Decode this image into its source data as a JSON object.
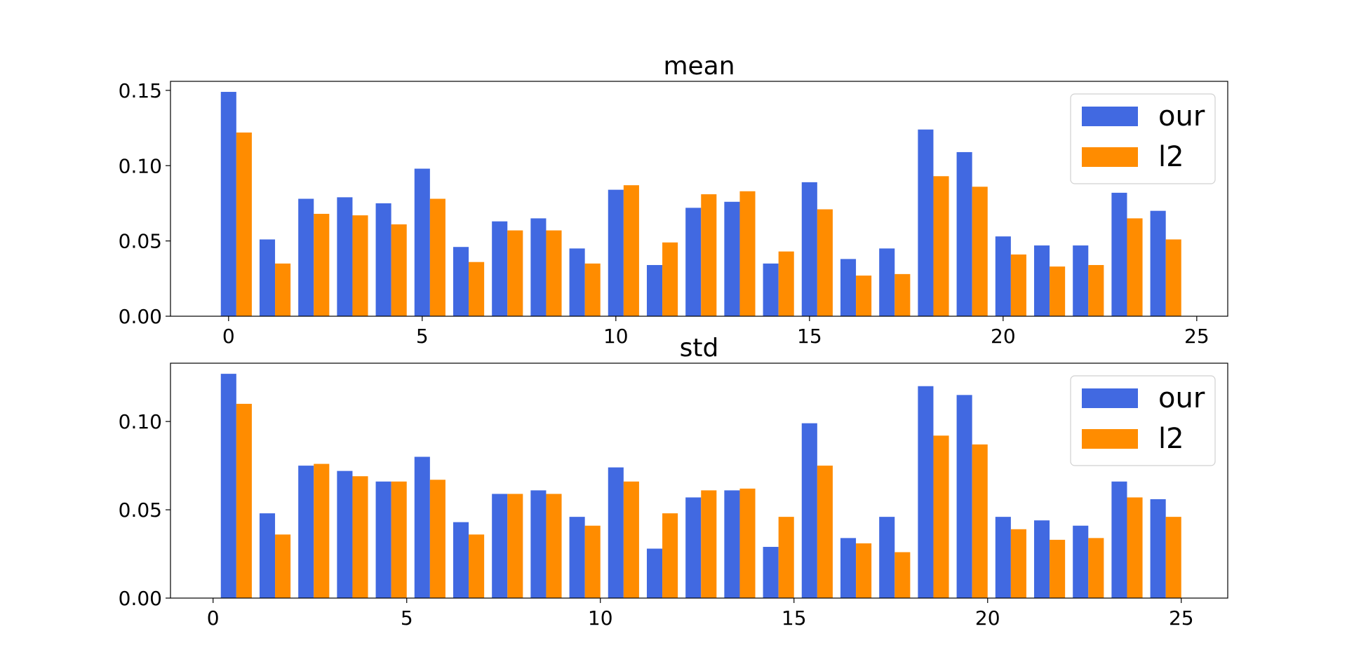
{
  "chart_data": [
    {
      "type": "bar",
      "title": "mean",
      "xlabel": "",
      "ylabel": "",
      "xlim": [
        -1.5,
        25.8
      ],
      "ylim": [
        0,
        0.156
      ],
      "x_ticks": [
        "0",
        "5",
        "10",
        "15",
        "20",
        "25"
      ],
      "x_tick_values": [
        0,
        5,
        10,
        15,
        20,
        25
      ],
      "y_ticks": [
        "0.00",
        "0.05",
        "0.10",
        "0.15"
      ],
      "y_tick_values": [
        0,
        0.05,
        0.1,
        0.15
      ],
      "grid": false,
      "legend": "top-right",
      "series": [
        {
          "name": "our",
          "color": "#4169e1",
          "x": [
            0,
            1,
            2,
            3,
            4,
            5,
            6,
            7,
            8,
            9,
            10,
            11,
            12,
            13,
            14,
            15,
            16,
            17,
            18,
            19,
            20,
            21,
            22,
            23,
            24
          ],
          "values": [
            0.149,
            0.051,
            0.078,
            0.079,
            0.075,
            0.098,
            0.046,
            0.063,
            0.065,
            0.045,
            0.084,
            0.034,
            0.072,
            0.076,
            0.035,
            0.089,
            0.038,
            0.045,
            0.124,
            0.109,
            0.053,
            0.047,
            0.047,
            0.082,
            0.07
          ]
        },
        {
          "name": "l2",
          "color": "#ff8c00",
          "x": [
            0.4,
            1.4,
            2.4,
            3.4,
            4.4,
            5.4,
            6.4,
            7.4,
            8.4,
            9.4,
            10.4,
            11.4,
            12.4,
            13.4,
            14.4,
            15.4,
            16.4,
            17.4,
            18.4,
            19.4,
            20.4,
            21.4,
            22.4,
            23.4,
            24.4
          ],
          "values": [
            0.122,
            0.035,
            0.068,
            0.067,
            0.061,
            0.078,
            0.036,
            0.057,
            0.057,
            0.035,
            0.087,
            0.049,
            0.081,
            0.083,
            0.043,
            0.071,
            0.027,
            0.028,
            0.093,
            0.086,
            0.041,
            0.033,
            0.034,
            0.065,
            0.051
          ]
        }
      ]
    },
    {
      "type": "bar",
      "title": "std",
      "xlabel": "",
      "ylabel": "",
      "xlim": [
        -1.1,
        26.2
      ],
      "ylim": [
        0,
        0.133
      ],
      "x_ticks": [
        "0",
        "5",
        "10",
        "15",
        "20",
        "25"
      ],
      "x_tick_values": [
        0,
        5,
        10,
        15,
        20,
        25
      ],
      "y_ticks": [
        "0.00",
        "0.05",
        "0.10"
      ],
      "y_tick_values": [
        0,
        0.05,
        0.1
      ],
      "grid": false,
      "legend": "top-right",
      "series": [
        {
          "name": "our",
          "color": "#4169e1",
          "x": [
            0.4,
            1.4,
            2.4,
            3.4,
            4.4,
            5.4,
            6.4,
            7.4,
            8.4,
            9.4,
            10.4,
            11.4,
            12.4,
            13.4,
            14.4,
            15.4,
            16.4,
            17.4,
            18.4,
            19.4,
            20.4,
            21.4,
            22.4,
            23.4,
            24.4
          ],
          "values": [
            0.127,
            0.048,
            0.075,
            0.072,
            0.066,
            0.08,
            0.043,
            0.059,
            0.061,
            0.046,
            0.074,
            0.028,
            0.057,
            0.061,
            0.029,
            0.099,
            0.034,
            0.046,
            0.12,
            0.115,
            0.046,
            0.044,
            0.041,
            0.066,
            0.056
          ]
        },
        {
          "name": "l2",
          "color": "#ff8c00",
          "x": [
            0.8,
            1.8,
            2.8,
            3.8,
            4.8,
            5.8,
            6.8,
            7.8,
            8.8,
            9.8,
            10.8,
            11.8,
            12.8,
            13.8,
            14.8,
            15.8,
            16.8,
            17.8,
            18.8,
            19.8,
            20.8,
            21.8,
            22.8,
            23.8,
            24.8
          ],
          "values": [
            0.11,
            0.036,
            0.076,
            0.069,
            0.066,
            0.067,
            0.036,
            0.059,
            0.059,
            0.041,
            0.066,
            0.048,
            0.061,
            0.062,
            0.046,
            0.075,
            0.031,
            0.026,
            0.092,
            0.087,
            0.039,
            0.033,
            0.034,
            0.057,
            0.046
          ]
        }
      ]
    }
  ]
}
